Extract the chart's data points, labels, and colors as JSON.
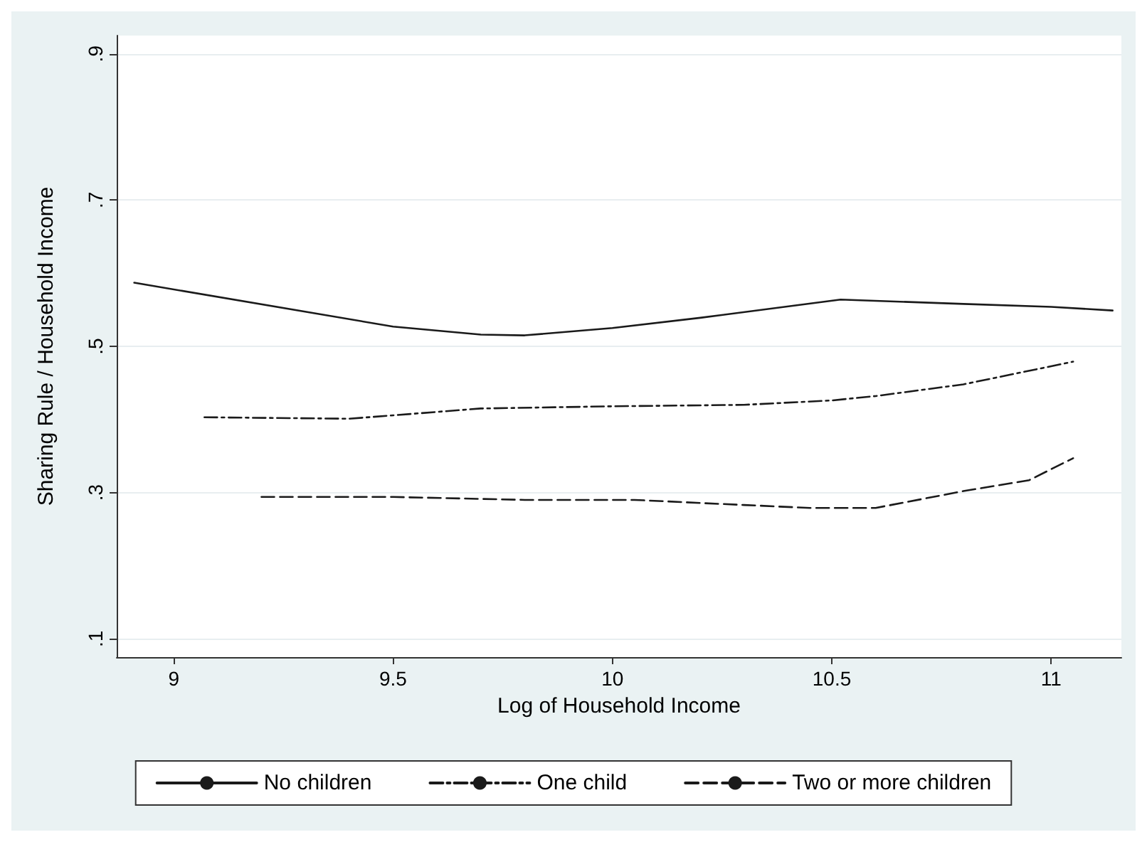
{
  "chart_data": {
    "type": "line",
    "xlabel": "Log of Household Income",
    "ylabel": "Sharing Rule / Household Income",
    "xlim": [
      8.87,
      11.16
    ],
    "ylim": [
      0.075,
      0.925
    ],
    "xticks": [
      9,
      9.5,
      10,
      10.5,
      11
    ],
    "yticks": [
      {
        "value": 0.1,
        "label": ".1"
      },
      {
        "value": 0.3,
        "label": ".3"
      },
      {
        "value": 0.5,
        "label": ".5"
      },
      {
        "value": 0.7,
        "label": ".7"
      },
      {
        "value": 0.9,
        "label": ".9"
      }
    ],
    "grid": "y",
    "legend": "bottom",
    "marker": "none",
    "series": [
      {
        "name": "No children",
        "color": "#1a1a1a",
        "line_style": "solid",
        "x": [
          8.91,
          9.5,
          9.7,
          9.8,
          10.0,
          10.2,
          10.52,
          10.8,
          11.0,
          11.14
        ],
        "values": [
          0.587,
          0.527,
          0.516,
          0.515,
          0.525,
          0.539,
          0.564,
          0.558,
          0.554,
          0.549
        ]
      },
      {
        "name": "One child",
        "color": "#1a1a1a",
        "line_style": "dashdot",
        "x": [
          9.07,
          9.4,
          9.7,
          10.0,
          10.3,
          10.5,
          10.6,
          10.8,
          11.05
        ],
        "values": [
          0.403,
          0.401,
          0.415,
          0.418,
          0.42,
          0.426,
          0.432,
          0.448,
          0.479
        ]
      },
      {
        "name": "Two or more children",
        "color": "#1a1a1a",
        "line_style": "dashed",
        "x": [
          9.2,
          9.5,
          9.8,
          10.05,
          10.3,
          10.45,
          10.6,
          10.8,
          10.95,
          11.05
        ],
        "values": [
          0.294,
          0.294,
          0.29,
          0.29,
          0.283,
          0.279,
          0.279,
          0.302,
          0.317,
          0.347
        ]
      }
    ]
  }
}
